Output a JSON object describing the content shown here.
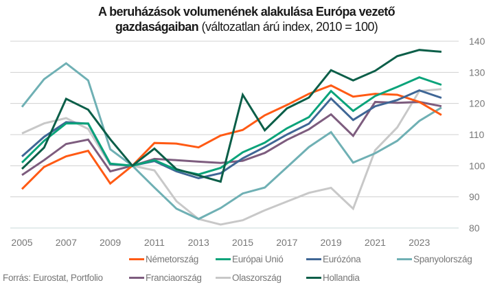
{
  "title": {
    "bold": "A beruházások volumenének alakulása Európa vezető gazdaságaiban",
    "bold_line1": "A beruházások volumenének alakulása Európa vezető",
    "bold_line2": "gazdaságaiban",
    "normal": "(változatlan árú index, 2010 = 100)"
  },
  "source": "Forrás: Eurostat, Portfolio",
  "chart_data": {
    "type": "line",
    "title": "A beruházások volumenének alakulása Európa vezető gazdaságaiban (változatlan árú index, 2010 = 100)",
    "xlabel": "",
    "ylabel": "",
    "x": [
      2005,
      2006,
      2007,
      2008,
      2009,
      2010,
      2011,
      2012,
      2013,
      2014,
      2015,
      2016,
      2017,
      2018,
      2019,
      2020,
      2021,
      2022,
      2023,
      2024
    ],
    "x_tick_labels": [
      "2005",
      "2007",
      "2009",
      "2011",
      "2013",
      "2015",
      "2017",
      "2019",
      "2021",
      "2023"
    ],
    "y_tick_labels": [
      "80",
      "90",
      "100",
      "110",
      "120",
      "130",
      "140"
    ],
    "ylim": [
      80,
      140
    ],
    "y_axis_side": "right",
    "grid": true,
    "legend_position": "bottom",
    "series": [
      {
        "name": "Németország",
        "color": "#ff5a14",
        "values": [
          92.5,
          99.6,
          103.0,
          104.8,
          94.3,
          100,
          107.3,
          107.1,
          105.9,
          109.7,
          111.5,
          116.2,
          119.5,
          123.1,
          125.8,
          122.2,
          123.1,
          122.8,
          120.5,
          116.3
        ]
      },
      {
        "name": "Európai Unió",
        "color": "#0aa37a",
        "values": [
          101.0,
          108.0,
          113.6,
          113.6,
          100.7,
          100,
          101.8,
          98.7,
          97.2,
          99.3,
          104.3,
          107.4,
          112.0,
          115.6,
          124.0,
          117.6,
          122.4,
          125.3,
          128.4,
          126.0
        ]
      },
      {
        "name": "Eurózóna",
        "color": "#3f6695",
        "values": [
          103.0,
          109.3,
          114.0,
          113.5,
          100.5,
          100,
          101.5,
          98.2,
          96.0,
          97.6,
          102.4,
          106.0,
          110.0,
          113.5,
          121.6,
          114.7,
          119.1,
          121.1,
          124.2,
          121.8
        ]
      },
      {
        "name": "Spanyolország",
        "color": "#6fb0b4",
        "values": [
          118.9,
          127.8,
          132.9,
          127.4,
          105.3,
          100,
          93.0,
          86.2,
          82.9,
          86.4,
          91.1,
          93.0,
          99.5,
          106.0,
          110.8,
          101.0,
          104.0,
          108.0,
          114.4,
          118.7
        ]
      },
      {
        "name": "Franciaország",
        "color": "#7d5c7e",
        "values": [
          97.0,
          101.8,
          107.0,
          108.4,
          98.2,
          100,
          102.2,
          101.8,
          101.3,
          100.9,
          101.6,
          104.1,
          108.3,
          111.7,
          116.5,
          109.6,
          120.5,
          120.2,
          120.5,
          119.1
        ]
      },
      {
        "name": "Olaszország",
        "color": "#c8c8c8",
        "values": [
          110.4,
          113.6,
          115.3,
          111.8,
          100.2,
          100,
          98.5,
          88.6,
          82.9,
          81.1,
          82.5,
          85.7,
          88.5,
          91.3,
          92.9,
          86.2,
          105.0,
          112.3,
          124.0,
          124.6
        ]
      },
      {
        "name": "Hollandia",
        "color": "#0b5e48",
        "values": [
          99.0,
          105.8,
          121.5,
          118.0,
          108.5,
          100,
          105.5,
          98.9,
          96.9,
          94.9,
          122.8,
          111.4,
          118.4,
          121.9,
          130.7,
          127.4,
          130.5,
          135.2,
          137.2,
          136.6
        ]
      }
    ]
  },
  "legend": {
    "row1": [
      {
        "label": "Németország",
        "series": 0
      },
      {
        "label": "Európai Unió",
        "series": 1
      },
      {
        "label": "Eurózóna",
        "series": 2
      },
      {
        "label": "Spanyolország",
        "series": 3
      }
    ],
    "row2": [
      {
        "label": "Franciaország",
        "series": 4
      },
      {
        "label": "Olaszország",
        "series": 5
      },
      {
        "label": "Hollandia",
        "series": 6
      }
    ]
  }
}
